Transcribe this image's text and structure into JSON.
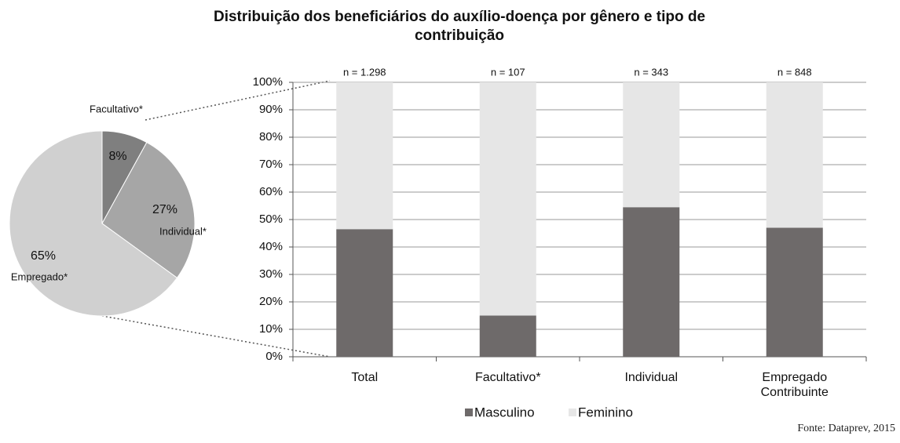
{
  "chart_data": [
    {
      "type": "pie",
      "categories": [
        "Facultativo*",
        "Individual*",
        "Empregado*"
      ],
      "values": [
        8,
        27,
        65
      ],
      "value_labels": [
        "8%",
        "27%",
        "65%"
      ],
      "colors": [
        "#7f7f7f",
        "#a6a6a6",
        "#d0d0d0"
      ]
    },
    {
      "type": "stacked_bar",
      "title": "Distribuição dos beneficiários do auxílio-doença por gênero e tipo de contribuição",
      "categories": [
        "Total",
        "Facultativo*",
        "Individual",
        "Empregado Contribuinte"
      ],
      "annotations": [
        "n = 1.298",
        "n = 107",
        "n = 343",
        "n = 848"
      ],
      "series": [
        {
          "name": "Masculino",
          "color": "#6e6a6a",
          "values": [
            46.5,
            15,
            54.5,
            47
          ]
        },
        {
          "name": "Feminino",
          "color": "#e6e6e6",
          "values": [
            53.5,
            85,
            45.5,
            53
          ]
        }
      ],
      "ylim": [
        0,
        100
      ],
      "yticks": [
        {
          "value": 0,
          "label": "0%"
        },
        {
          "value": 10,
          "label": "10%"
        },
        {
          "value": 20,
          "label": "20%"
        },
        {
          "value": 30,
          "label": "30%"
        },
        {
          "value": 40,
          "label": "40%"
        },
        {
          "value": 50,
          "label": "50%"
        },
        {
          "value": 60,
          "label": "60%"
        },
        {
          "value": 70,
          "label": "70%"
        },
        {
          "value": 80,
          "label": "80%"
        },
        {
          "value": 90,
          "label": "90%"
        },
        {
          "value": 100,
          "label": "100%"
        }
      ],
      "grid": true,
      "legend": "bottom",
      "source": "Fonte: Dataprev, 2015"
    }
  ]
}
